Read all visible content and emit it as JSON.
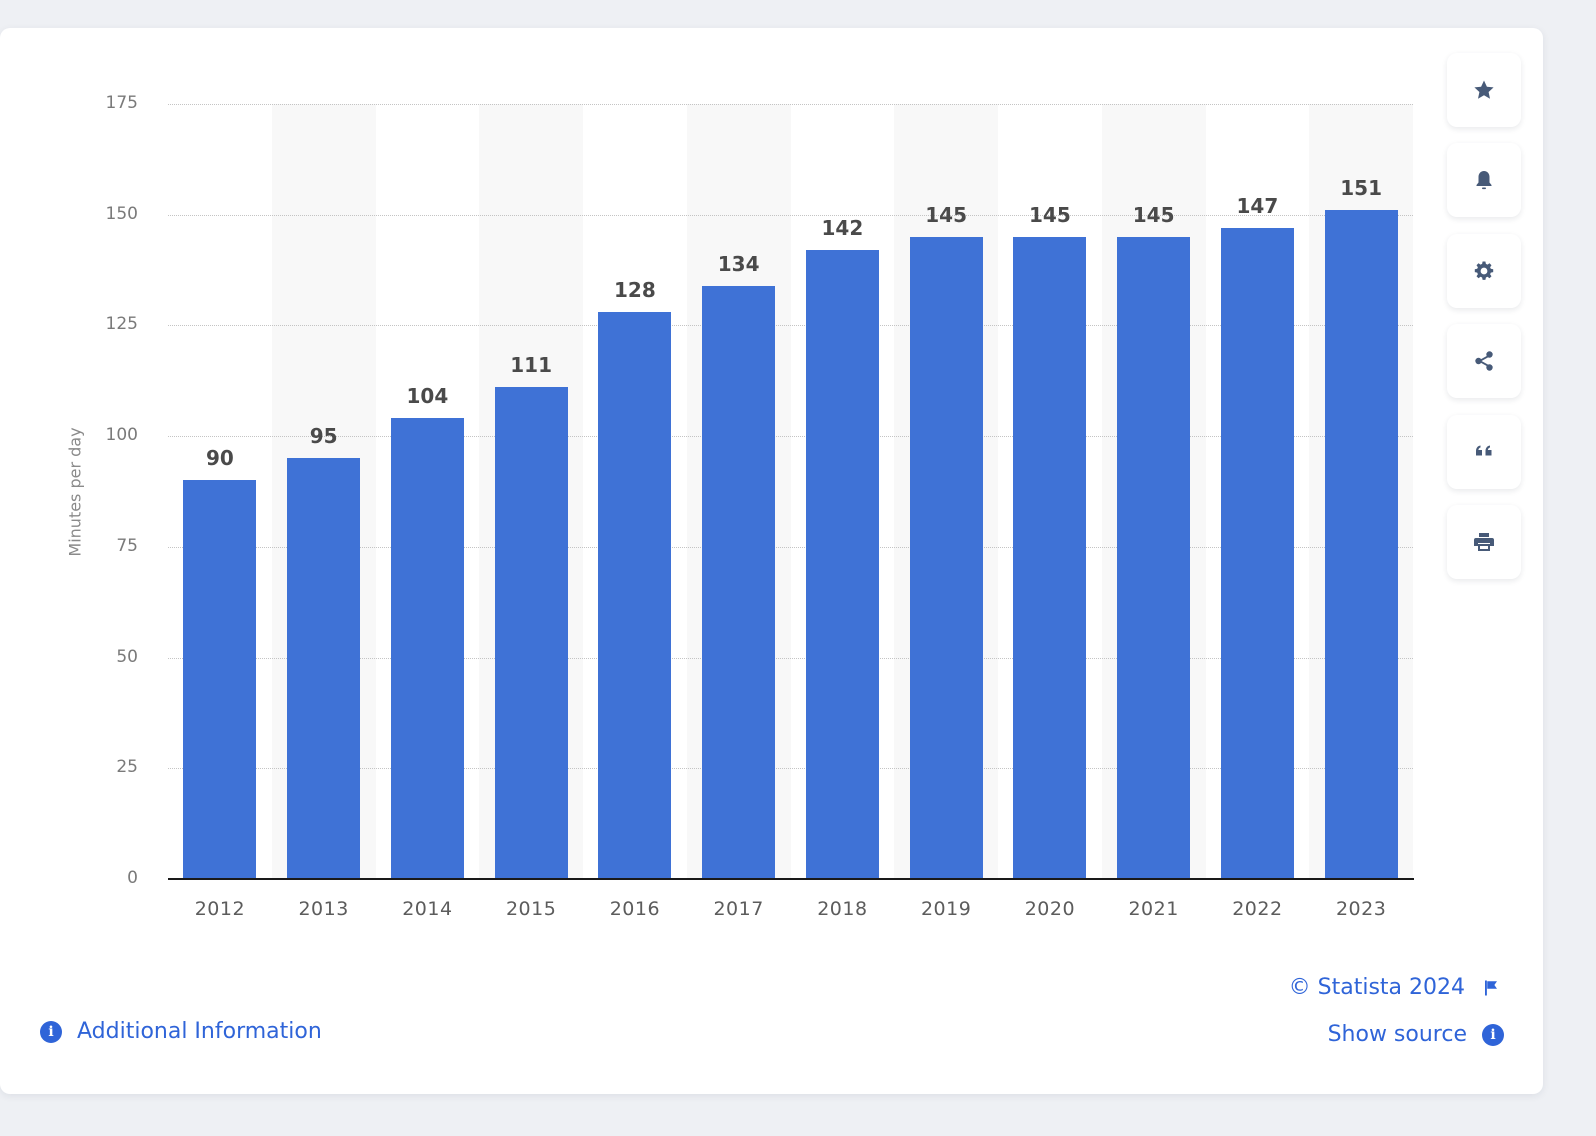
{
  "chart_data": {
    "type": "bar",
    "title": "",
    "xlabel": "",
    "ylabel": "Minutes per day",
    "categories": [
      "2012",
      "2013",
      "2014",
      "2015",
      "2016",
      "2017",
      "2018",
      "2019",
      "2020",
      "2021",
      "2022",
      "2023"
    ],
    "values": [
      90,
      95,
      104,
      111,
      128,
      134,
      142,
      145,
      145,
      145,
      147,
      151
    ],
    "ylim": [
      0,
      175
    ],
    "yticks": [
      0,
      25,
      50,
      75,
      100,
      125,
      150,
      175
    ],
    "grid": true,
    "legend": null,
    "bar_color": "#3f72d6",
    "data_labels": true
  },
  "side_toolbar": {
    "buttons": [
      {
        "name": "favorite",
        "icon": "star-icon"
      },
      {
        "name": "notification",
        "icon": "bell-icon"
      },
      {
        "name": "settings",
        "icon": "gear-icon"
      },
      {
        "name": "share",
        "icon": "share-icon"
      },
      {
        "name": "cite",
        "icon": "quote-icon"
      },
      {
        "name": "print",
        "icon": "print-icon"
      }
    ]
  },
  "footer": {
    "additional_info_label": "Additional Information",
    "copyright_label": "© Statista 2024",
    "show_source_label": "Show source",
    "info_glyph": "i",
    "link_color": "#2f64d8"
  }
}
